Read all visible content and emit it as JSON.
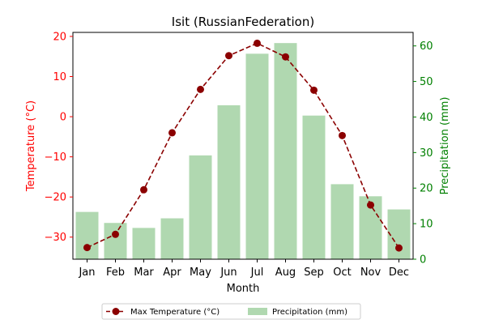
{
  "chart_data": {
    "type": "bar+line",
    "title": "Isit (RussianFederation)",
    "xlabel": "Month",
    "categories": [
      "Jan",
      "Feb",
      "Mar",
      "Apr",
      "May",
      "Jun",
      "Jul",
      "Aug",
      "Sep",
      "Oct",
      "Nov",
      "Dec"
    ],
    "series": [
      {
        "name": "Max Temperature (°C)",
        "type": "line",
        "axis": "left",
        "color": "#8b0000",
        "values": [
          -32.6,
          -29.3,
          -18.2,
          -4.0,
          6.8,
          15.2,
          18.3,
          14.9,
          6.6,
          -4.7,
          -22.0,
          -32.7
        ]
      },
      {
        "name": "Precipitation (mm)",
        "type": "bar",
        "axis": "right",
        "color": "#b0d8b0",
        "values": [
          13.3,
          10.2,
          8.8,
          11.5,
          29.2,
          43.3,
          57.8,
          60.8,
          40.4,
          21.1,
          17.7,
          14.0
        ]
      }
    ],
    "y_left": {
      "label": "Temperature (°C)",
      "color": "#ff0000",
      "lim": [
        -35.5,
        21
      ],
      "ticks": [
        -30,
        -20,
        -10,
        0,
        10,
        20
      ]
    },
    "y_right": {
      "label": "Precipitation (mm)",
      "color": "#008000",
      "lim": [
        0,
        63.8
      ],
      "ticks": [
        0,
        10,
        20,
        30,
        40,
        50,
        60
      ]
    },
    "legend": "bottom-center, two columns",
    "grid": false
  }
}
